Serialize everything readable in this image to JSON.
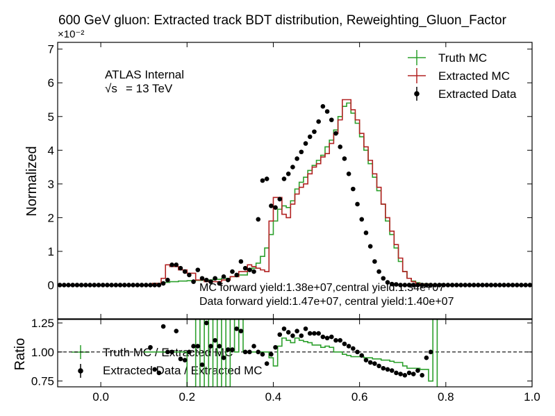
{
  "chart_data": [
    {
      "type": "line",
      "title": "600 GeV gluon: Extracted track BDT distribution, Reweighting_Gluon_Factor",
      "ylabel": "Normalized",
      "exponent_label": "×10⁻²",
      "xlim": [
        -0.1,
        1.0
      ],
      "ylim": [
        -1,
        7.2
      ],
      "y_ticks": [
        0,
        1,
        2,
        3,
        4,
        5,
        6,
        7
      ],
      "y_tick_labels": [
        "0",
        "1",
        "2",
        "3",
        "4",
        "5",
        "6",
        "7"
      ],
      "annotations": {
        "experiment": "ATLAS Internal",
        "energy_sqrt": "√s",
        "energy_value": "= 13 TeV",
        "mc_yields": "MC forward yield:1.38e+07,central yield:1.34e+07",
        "data_yields": "Data forward yield:1.47e+07, central yield:1.40e+07"
      },
      "legend_position": "top-right",
      "legend": [
        "Truth MC",
        "Extracted MC",
        "Extracted Data"
      ],
      "bin_edges": [
        -0.1,
        0.7
      ],
      "series": [
        {
          "name": "Truth MC",
          "style": "step",
          "color": "#2ca02c",
          "x": [
            -0.1,
            0.12,
            0.14,
            0.16,
            0.18,
            0.2,
            0.22,
            0.24,
            0.26,
            0.28,
            0.3,
            0.32,
            0.34,
            0.35,
            0.36,
            0.37,
            0.38,
            0.39,
            0.4,
            0.41,
            0.42,
            0.43,
            0.44,
            0.45,
            0.46,
            0.47,
            0.48,
            0.49,
            0.5,
            0.51,
            0.52,
            0.53,
            0.54,
            0.55,
            0.56,
            0.57,
            0.58,
            0.59,
            0.6,
            0.61,
            0.62,
            0.63,
            0.64,
            0.65,
            0.66,
            0.67,
            0.68,
            0.69,
            0.7,
            0.71,
            0.72,
            0.73,
            0.74,
            0.76,
            0.8,
            1.0
          ],
          "y": [
            0,
            0.05,
            0.08,
            0.1,
            0.12,
            0.13,
            0.14,
            0.15,
            0.17,
            0.2,
            0.25,
            0.3,
            0.45,
            0.5,
            0.65,
            0.85,
            1.1,
            1.5,
            1.9,
            2.25,
            2.35,
            2.3,
            2.5,
            2.85,
            3.05,
            3.2,
            3.4,
            3.55,
            3.7,
            3.85,
            4.1,
            4.3,
            4.6,
            5.0,
            5.3,
            5.4,
            5.1,
            4.8,
            4.4,
            4.0,
            3.6,
            3.2,
            2.8,
            2.4,
            1.9,
            1.5,
            1.1,
            0.7,
            0.4,
            0.2,
            0.12,
            0.07,
            0.04,
            0.02,
            0.01,
            0
          ]
        },
        {
          "name": "Extracted MC",
          "style": "step",
          "color": "#b22222",
          "x": [
            -0.1,
            0.12,
            0.14,
            0.15,
            0.16,
            0.18,
            0.2,
            0.22,
            0.24,
            0.26,
            0.28,
            0.3,
            0.32,
            0.34,
            0.35,
            0.36,
            0.37,
            0.38,
            0.39,
            0.4,
            0.41,
            0.42,
            0.43,
            0.44,
            0.45,
            0.46,
            0.47,
            0.48,
            0.49,
            0.5,
            0.51,
            0.52,
            0.53,
            0.54,
            0.55,
            0.56,
            0.57,
            0.58,
            0.59,
            0.6,
            0.61,
            0.62,
            0.63,
            0.64,
            0.65,
            0.66,
            0.67,
            0.68,
            0.69,
            0.7,
            0.71,
            0.72,
            0.73,
            0.74,
            0.76,
            0.8,
            1.0
          ],
          "y": [
            0,
            0.05,
            0.2,
            0.6,
            0.55,
            0.45,
            0.35,
            0.15,
            0.1,
            0.1,
            0.15,
            0.25,
            0.4,
            0.6,
            0.55,
            0.5,
            0.45,
            0.4,
            1.9,
            2.6,
            2.6,
            2.1,
            2.0,
            2.4,
            2.7,
            2.9,
            3.0,
            3.3,
            3.5,
            3.6,
            3.8,
            3.9,
            4.2,
            4.5,
            4.9,
            5.5,
            5.5,
            5.2,
            4.9,
            4.5,
            4.1,
            3.7,
            3.3,
            2.9,
            2.4,
            2.0,
            1.6,
            1.2,
            0.8,
            0.4,
            0.2,
            0.1,
            0.05,
            0.03,
            0.01,
            0,
            0
          ]
        },
        {
          "name": "Extracted Data",
          "style": "points",
          "color": "#000000",
          "x": [
            -0.095,
            -0.085,
            -0.075,
            -0.065,
            -0.055,
            -0.045,
            -0.035,
            -0.025,
            -0.015,
            -0.005,
            0.005,
            0.015,
            0.025,
            0.035,
            0.045,
            0.055,
            0.065,
            0.075,
            0.085,
            0.095,
            0.105,
            0.115,
            0.125,
            0.135,
            0.145,
            0.155,
            0.165,
            0.175,
            0.185,
            0.195,
            0.205,
            0.215,
            0.225,
            0.235,
            0.245,
            0.255,
            0.265,
            0.275,
            0.285,
            0.295,
            0.305,
            0.315,
            0.325,
            0.335,
            0.345,
            0.355,
            0.365,
            0.375,
            0.385,
            0.395,
            0.405,
            0.415,
            0.425,
            0.435,
            0.445,
            0.455,
            0.465,
            0.475,
            0.485,
            0.495,
            0.505,
            0.515,
            0.525,
            0.535,
            0.545,
            0.555,
            0.565,
            0.575,
            0.585,
            0.595,
            0.605,
            0.615,
            0.625,
            0.635,
            0.645,
            0.655,
            0.665,
            0.675,
            0.685,
            0.695,
            0.705,
            0.715,
            0.725,
            0.735,
            0.745,
            0.755,
            0.765,
            0.775,
            0.785,
            0.795,
            0.805,
            0.815,
            0.825,
            0.835,
            0.845,
            0.855,
            0.865,
            0.875,
            0.885,
            0.895,
            0.905,
            0.915,
            0.925,
            0.935,
            0.945,
            0.955,
            0.965,
            0.975,
            0.985,
            0.995
          ],
          "y": [
            0,
            0,
            0,
            0,
            0,
            0,
            0,
            0,
            0,
            0,
            0,
            0,
            0,
            0,
            0,
            0,
            0,
            0,
            0,
            0,
            0,
            0,
            0,
            0,
            0.05,
            0.15,
            0.6,
            0.6,
            0.5,
            0.4,
            0.3,
            0.1,
            0.45,
            0.2,
            0.15,
            0.1,
            0.2,
            0.05,
            0.25,
            0.15,
            0.4,
            0.3,
            0.7,
            0.5,
            0.45,
            0.4,
            1.95,
            3.1,
            3.15,
            2.35,
            2.3,
            2.55,
            3.15,
            3.3,
            3.5,
            3.75,
            3.95,
            4.2,
            4.4,
            4.55,
            4.85,
            5.3,
            5.15,
            4.9,
            4.5,
            4.1,
            3.75,
            3.3,
            2.85,
            2.4,
            1.95,
            1.55,
            1.15,
            0.7,
            0.4,
            0.2,
            0.08,
            0.03,
            0.02,
            0,
            0,
            0,
            0,
            0,
            0,
            0,
            0,
            0,
            0,
            0,
            0,
            0,
            0,
            0,
            0,
            0,
            0,
            0,
            0,
            0,
            0,
            0,
            0,
            0,
            0,
            0,
            0,
            0,
            0,
            0
          ]
        }
      ]
    },
    {
      "type": "line",
      "ylabel": "Ratio",
      "xlim": [
        -0.1,
        1.0
      ],
      "ylim": [
        0.7,
        1.28
      ],
      "x_ticks": [
        0.0,
        0.2,
        0.4,
        0.6,
        0.8,
        1.0
      ],
      "x_tick_labels": [
        "0.0",
        "0.2",
        "0.4",
        "0.6",
        "0.8",
        "1.0"
      ],
      "y_ticks": [
        0.75,
        1.0,
        1.25
      ],
      "y_tick_labels": [
        "0.75",
        "1.00",
        "1.25"
      ],
      "reference_line": 1.0,
      "legend_position": "left",
      "legend": [
        "Truth MC / Extracted MC",
        "Extracted Data / Extracted MC"
      ],
      "series": [
        {
          "name": "Truth MC / Extracted MC",
          "style": "step",
          "color": "#2ca02c",
          "x": [
            0.1,
            0.12,
            0.14,
            0.16,
            0.18,
            0.2,
            0.22,
            0.23,
            0.24,
            0.25,
            0.26,
            0.27,
            0.28,
            0.29,
            0.3,
            0.31,
            0.32,
            0.33,
            0.34,
            0.35,
            0.36,
            0.37,
            0.38,
            0.39,
            0.4,
            0.41,
            0.42,
            0.43,
            0.44,
            0.45,
            0.46,
            0.47,
            0.48,
            0.49,
            0.5,
            0.51,
            0.52,
            0.53,
            0.54,
            0.55,
            0.56,
            0.57,
            0.58,
            0.59,
            0.6,
            0.61,
            0.62,
            0.63,
            0.64,
            0.65,
            0.66,
            0.67,
            0.68,
            0.69,
            0.7,
            0.71,
            0.72,
            0.73,
            0.74,
            0.75,
            0.76,
            0.77,
            0.78
          ],
          "y": [
            1.0,
            1.0,
            1.0,
            1.0,
            1.0,
            0.7,
            1.3,
            0.7,
            1.3,
            0.7,
            1.3,
            0.7,
            1.3,
            0.7,
            1.3,
            1.0,
            1.3,
            1.0,
            1.0,
            1.0,
            1.0,
            1.0,
            1.0,
            0.95,
            0.88,
            1.05,
            1.12,
            1.1,
            1.08,
            1.12,
            1.1,
            1.09,
            1.08,
            1.06,
            1.06,
            1.04,
            1.05,
            1.04,
            1.0,
            1.0,
            0.98,
            0.97,
            0.96,
            0.96,
            0.96,
            0.95,
            0.95,
            0.94,
            0.94,
            0.93,
            0.93,
            0.92,
            0.91,
            0.91,
            0.88,
            0.86,
            0.86,
            0.86,
            0.85,
            0.85,
            0.75,
            1.3,
            0.7
          ]
        },
        {
          "name": "Extracted Data / Extracted MC",
          "style": "points",
          "color": "#000000",
          "x": [
            0.115,
            0.125,
            0.135,
            0.145,
            0.155,
            0.165,
            0.175,
            0.185,
            0.195,
            0.205,
            0.215,
            0.225,
            0.235,
            0.245,
            0.255,
            0.265,
            0.275,
            0.285,
            0.295,
            0.305,
            0.315,
            0.325,
            0.335,
            0.345,
            0.355,
            0.365,
            0.375,
            0.385,
            0.395,
            0.405,
            0.415,
            0.425,
            0.435,
            0.445,
            0.455,
            0.465,
            0.475,
            0.485,
            0.495,
            0.505,
            0.515,
            0.525,
            0.535,
            0.545,
            0.555,
            0.565,
            0.575,
            0.585,
            0.595,
            0.605,
            0.615,
            0.625,
            0.635,
            0.645,
            0.655,
            0.665,
            0.675,
            0.685,
            0.695,
            0.705,
            0.715,
            0.725,
            0.735,
            0.745,
            0.755,
            0.765
          ],
          "y": [
            1.04,
            0.85,
            0.82,
            1.22,
            1.0,
            1.0,
            1.18,
            0.94,
            0.93,
            1.0,
            1.05,
            1.05,
            0.89,
            1.25,
            1.05,
            1.1,
            1.05,
            0.95,
            1.02,
            1.02,
            1.2,
            1.18,
            1.0,
            1.0,
            1.05,
            1.0,
            0.98,
            0.9,
            0.98,
            1.04,
            1.15,
            1.2,
            1.17,
            1.14,
            1.18,
            1.14,
            1.2,
            1.16,
            1.16,
            1.16,
            1.13,
            1.12,
            1.13,
            1.1,
            1.1,
            1.07,
            1.05,
            1.03,
            1.0,
            0.97,
            0.93,
            0.91,
            0.9,
            0.88,
            0.86,
            0.85,
            0.84,
            0.82,
            0.81,
            0.8,
            0.82,
            0.81,
            0.84,
            0.8,
            0.95,
            1.0
          ]
        }
      ]
    }
  ]
}
